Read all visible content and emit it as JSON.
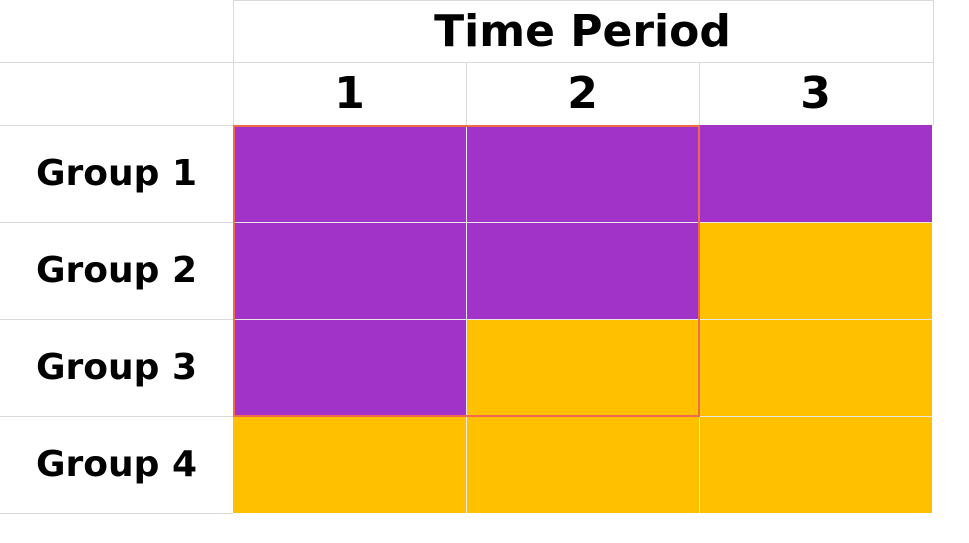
{
  "header": {
    "title": "Time Period"
  },
  "periods": [
    "1",
    "2",
    "3"
  ],
  "groups": [
    {
      "label": "Group 1",
      "cells": [
        "treated",
        "treated",
        "treated"
      ]
    },
    {
      "label": "Group 2",
      "cells": [
        "treated",
        "treated",
        "control"
      ]
    },
    {
      "label": "Group 3",
      "cells": [
        "treated",
        "control",
        "control"
      ]
    },
    {
      "label": "Group 4",
      "cells": [
        "control",
        "control",
        "control"
      ]
    }
  ],
  "colors": {
    "treated": "#a233c8",
    "control": "#ffc000",
    "highlight": "#f06a4c",
    "grid": "#d9d9d9"
  },
  "highlight_region": {
    "rows": [
      1,
      3
    ],
    "cols": [
      1,
      2
    ]
  }
}
